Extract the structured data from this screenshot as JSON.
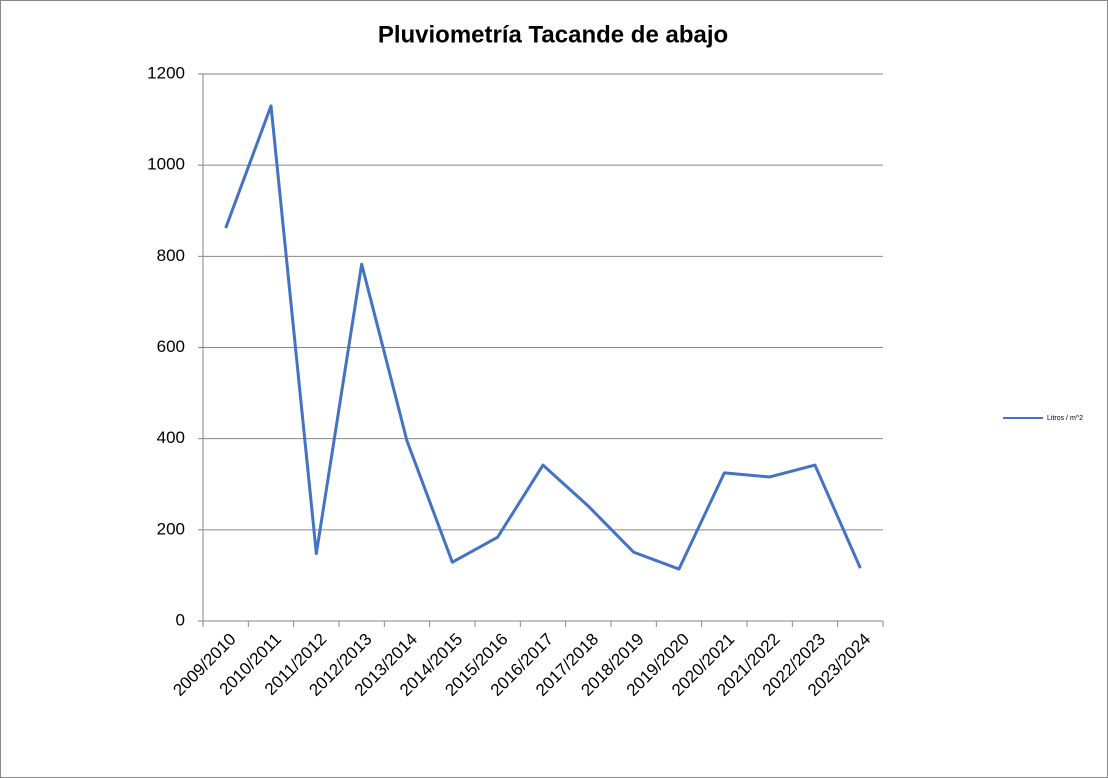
{
  "chart_data": {
    "type": "line",
    "title": "Pluviometría Tacande de abajo",
    "categories": [
      "2009/2010",
      "2010/2011",
      "2011/2012",
      "2012/2013",
      "2013/2014",
      "2014/2015",
      "2015/2016",
      "2016/2017",
      "2017/2018",
      "2018/2019",
      "2019/2020",
      "2020/2021",
      "2021/2022",
      "2022/2023",
      "2023/2024"
    ],
    "series": [
      {
        "name": "Litros / m^2",
        "color": "#4472c4",
        "values": [
          862,
          1130,
          148,
          783,
          395,
          129,
          184,
          342,
          252,
          151,
          114,
          325,
          316,
          342,
          116
        ]
      }
    ],
    "ylim": [
      0,
      1200
    ],
    "yticks": [
      0,
      200,
      400,
      600,
      800,
      1000,
      1200
    ],
    "grid": true,
    "legend": "right"
  }
}
